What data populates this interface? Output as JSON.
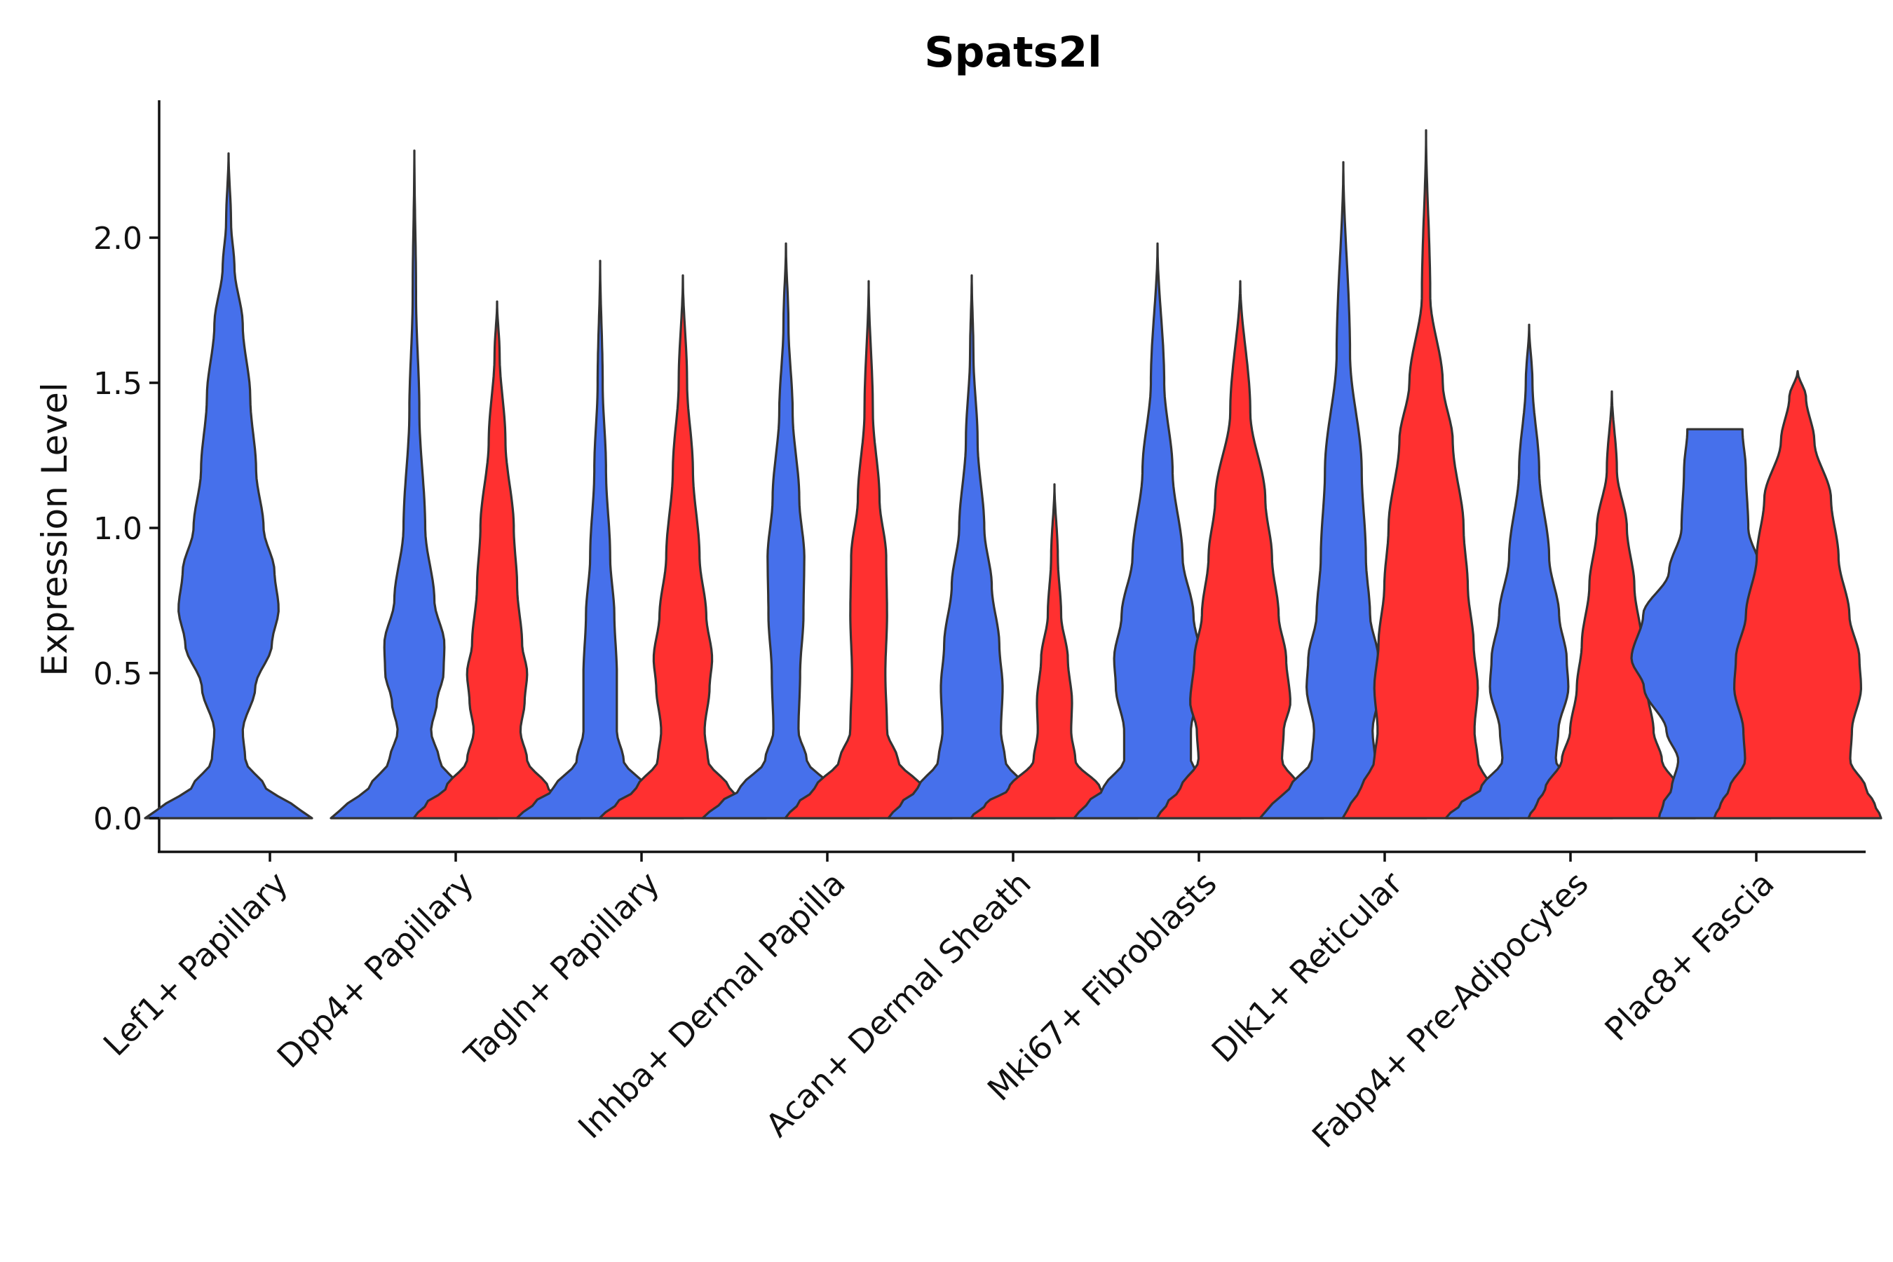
{
  "chart_data": {
    "type": "violin",
    "title": "Spats2l",
    "xlabel": "",
    "ylabel": "Expression Level",
    "ylim": [
      -0.12,
      2.47
    ],
    "yticks": [
      0.0,
      0.5,
      1.0,
      1.5,
      2.0
    ],
    "ytick_labels": [
      "0.0",
      "0.5",
      "1.0",
      "1.5",
      "2.0"
    ],
    "categories": [
      "Lef1+ Papillary",
      "Dpp4+ Papillary",
      "Tagln+ Papillary",
      "Inhba+ Dermal Papilla",
      "Acan+ Dermal Sheath",
      "Mki67+ Fibroblasts",
      "Dlk1+ Reticular",
      "Fabp4+ Pre-Adipocytes",
      "Plac8+ Fascia"
    ],
    "colors": {
      "blue_group": "#4670EB",
      "red_group": "#FF3030",
      "outline": "#333333"
    },
    "violins": [
      {
        "category": 0,
        "group": "blue",
        "max": 2.29,
        "profile": [
          [
            0,
            1.0
          ],
          [
            0.05,
            0.75
          ],
          [
            0.1,
            0.45
          ],
          [
            0.2,
            0.2
          ],
          [
            0.3,
            0.17
          ],
          [
            0.45,
            0.32
          ],
          [
            0.6,
            0.52
          ],
          [
            0.72,
            0.6
          ],
          [
            0.85,
            0.55
          ],
          [
            1.0,
            0.42
          ],
          [
            1.2,
            0.33
          ],
          [
            1.45,
            0.26
          ],
          [
            1.7,
            0.17
          ],
          [
            1.9,
            0.07
          ],
          [
            2.05,
            0.03
          ],
          [
            2.29,
            0.0
          ]
        ]
      },
      {
        "category": 1,
        "group": "blue",
        "max": 2.3,
        "profile": [
          [
            0,
            1.0
          ],
          [
            0.05,
            0.8
          ],
          [
            0.1,
            0.55
          ],
          [
            0.2,
            0.3
          ],
          [
            0.3,
            0.2
          ],
          [
            0.4,
            0.27
          ],
          [
            0.5,
            0.35
          ],
          [
            0.6,
            0.36
          ],
          [
            0.75,
            0.24
          ],
          [
            1.0,
            0.13
          ],
          [
            1.4,
            0.06
          ],
          [
            1.8,
            0.02
          ],
          [
            2.3,
            0.0
          ]
        ]
      },
      {
        "category": 1,
        "group": "red",
        "max": 1.78,
        "profile": [
          [
            0,
            1.0
          ],
          [
            0.05,
            0.85
          ],
          [
            0.1,
            0.62
          ],
          [
            0.2,
            0.36
          ],
          [
            0.3,
            0.28
          ],
          [
            0.4,
            0.33
          ],
          [
            0.5,
            0.36
          ],
          [
            0.6,
            0.3
          ],
          [
            0.8,
            0.24
          ],
          [
            1.0,
            0.2
          ],
          [
            1.3,
            0.1
          ],
          [
            1.6,
            0.03
          ],
          [
            1.78,
            0.0
          ]
        ]
      },
      {
        "category": 2,
        "group": "blue",
        "max": 1.92,
        "profile": [
          [
            0,
            1.0
          ],
          [
            0.05,
            0.8
          ],
          [
            0.1,
            0.56
          ],
          [
            0.2,
            0.28
          ],
          [
            0.3,
            0.2
          ],
          [
            0.5,
            0.2
          ],
          [
            0.7,
            0.17
          ],
          [
            0.9,
            0.12
          ],
          [
            1.2,
            0.07
          ],
          [
            1.5,
            0.03
          ],
          [
            1.92,
            0.0
          ]
        ]
      },
      {
        "category": 2,
        "group": "red",
        "max": 1.87,
        "profile": [
          [
            0,
            1.0
          ],
          [
            0.05,
            0.8
          ],
          [
            0.1,
            0.56
          ],
          [
            0.2,
            0.3
          ],
          [
            0.3,
            0.26
          ],
          [
            0.45,
            0.32
          ],
          [
            0.55,
            0.35
          ],
          [
            0.7,
            0.28
          ],
          [
            0.9,
            0.2
          ],
          [
            1.2,
            0.12
          ],
          [
            1.5,
            0.05
          ],
          [
            1.87,
            0.0
          ]
        ]
      },
      {
        "category": 3,
        "group": "blue",
        "max": 1.98,
        "profile": [
          [
            0,
            1.0
          ],
          [
            0.05,
            0.8
          ],
          [
            0.1,
            0.55
          ],
          [
            0.2,
            0.25
          ],
          [
            0.3,
            0.15
          ],
          [
            0.5,
            0.17
          ],
          [
            0.7,
            0.21
          ],
          [
            0.9,
            0.22
          ],
          [
            1.1,
            0.16
          ],
          [
            1.4,
            0.08
          ],
          [
            1.7,
            0.03
          ],
          [
            1.98,
            0.0
          ]
        ]
      },
      {
        "category": 3,
        "group": "red",
        "max": 1.85,
        "profile": [
          [
            0,
            1.0
          ],
          [
            0.05,
            0.85
          ],
          [
            0.1,
            0.65
          ],
          [
            0.2,
            0.35
          ],
          [
            0.3,
            0.22
          ],
          [
            0.5,
            0.2
          ],
          [
            0.7,
            0.22
          ],
          [
            0.9,
            0.21
          ],
          [
            1.1,
            0.13
          ],
          [
            1.4,
            0.05
          ],
          [
            1.85,
            0.0
          ]
        ]
      },
      {
        "category": 4,
        "group": "blue",
        "max": 1.87,
        "profile": [
          [
            0,
            1.0
          ],
          [
            0.05,
            0.85
          ],
          [
            0.1,
            0.65
          ],
          [
            0.2,
            0.4
          ],
          [
            0.3,
            0.35
          ],
          [
            0.45,
            0.37
          ],
          [
            0.6,
            0.33
          ],
          [
            0.8,
            0.24
          ],
          [
            1.0,
            0.15
          ],
          [
            1.3,
            0.07
          ],
          [
            1.6,
            0.02
          ],
          [
            1.87,
            0.0
          ]
        ]
      },
      {
        "category": 4,
        "group": "red",
        "max": 1.15,
        "profile": [
          [
            0,
            1.0
          ],
          [
            0.05,
            0.82
          ],
          [
            0.1,
            0.55
          ],
          [
            0.2,
            0.25
          ],
          [
            0.3,
            0.2
          ],
          [
            0.4,
            0.21
          ],
          [
            0.55,
            0.16
          ],
          [
            0.7,
            0.08
          ],
          [
            0.9,
            0.04
          ],
          [
            1.15,
            0.0
          ]
        ]
      },
      {
        "category": 5,
        "group": "blue",
        "max": 1.98,
        "profile": [
          [
            0,
            1.0
          ],
          [
            0.05,
            0.85
          ],
          [
            0.1,
            0.65
          ],
          [
            0.2,
            0.4
          ],
          [
            0.3,
            0.4
          ],
          [
            0.45,
            0.5
          ],
          [
            0.55,
            0.52
          ],
          [
            0.7,
            0.43
          ],
          [
            0.9,
            0.3
          ],
          [
            1.2,
            0.18
          ],
          [
            1.5,
            0.08
          ],
          [
            1.98,
            0.0
          ]
        ]
      },
      {
        "category": 5,
        "group": "red",
        "max": 1.85,
        "profile": [
          [
            0,
            1.0
          ],
          [
            0.05,
            0.88
          ],
          [
            0.1,
            0.72
          ],
          [
            0.2,
            0.5
          ],
          [
            0.3,
            0.52
          ],
          [
            0.4,
            0.6
          ],
          [
            0.55,
            0.55
          ],
          [
            0.7,
            0.46
          ],
          [
            0.9,
            0.38
          ],
          [
            1.1,
            0.3
          ],
          [
            1.4,
            0.12
          ],
          [
            1.85,
            0.0
          ]
        ]
      },
      {
        "category": 6,
        "group": "blue",
        "max": 2.26,
        "profile": [
          [
            0,
            1.0
          ],
          [
            0.05,
            0.85
          ],
          [
            0.1,
            0.65
          ],
          [
            0.2,
            0.38
          ],
          [
            0.3,
            0.35
          ],
          [
            0.45,
            0.44
          ],
          [
            0.55,
            0.42
          ],
          [
            0.7,
            0.32
          ],
          [
            0.9,
            0.27
          ],
          [
            1.2,
            0.22
          ],
          [
            1.6,
            0.08
          ],
          [
            2.26,
            0.0
          ]
        ]
      },
      {
        "category": 6,
        "group": "red",
        "max": 2.37,
        "profile": [
          [
            0,
            1.0
          ],
          [
            0.05,
            0.9
          ],
          [
            0.1,
            0.78
          ],
          [
            0.2,
            0.62
          ],
          [
            0.3,
            0.58
          ],
          [
            0.45,
            0.62
          ],
          [
            0.6,
            0.57
          ],
          [
            0.8,
            0.5
          ],
          [
            1.0,
            0.45
          ],
          [
            1.3,
            0.32
          ],
          [
            1.5,
            0.2
          ],
          [
            1.8,
            0.05
          ],
          [
            2.37,
            0.0
          ]
        ]
      },
      {
        "category": 7,
        "group": "blue",
        "max": 1.7,
        "profile": [
          [
            0,
            1.0
          ],
          [
            0.05,
            0.82
          ],
          [
            0.1,
            0.58
          ],
          [
            0.2,
            0.32
          ],
          [
            0.3,
            0.35
          ],
          [
            0.45,
            0.47
          ],
          [
            0.55,
            0.45
          ],
          [
            0.7,
            0.36
          ],
          [
            0.9,
            0.24
          ],
          [
            1.2,
            0.12
          ],
          [
            1.5,
            0.04
          ],
          [
            1.7,
            0.0
          ]
        ]
      },
      {
        "category": 7,
        "group": "red",
        "max": 1.47,
        "profile": [
          [
            0,
            1.0
          ],
          [
            0.05,
            0.9
          ],
          [
            0.1,
            0.8
          ],
          [
            0.2,
            0.6
          ],
          [
            0.3,
            0.5
          ],
          [
            0.45,
            0.42
          ],
          [
            0.6,
            0.36
          ],
          [
            0.8,
            0.27
          ],
          [
            1.0,
            0.18
          ],
          [
            1.2,
            0.06
          ],
          [
            1.47,
            0.0
          ]
        ]
      },
      {
        "category": 8,
        "group": "blue",
        "max": 1.34,
        "profile": [
          [
            0,
            0.67
          ],
          [
            0.05,
            0.62
          ],
          [
            0.1,
            0.52
          ],
          [
            0.2,
            0.44
          ],
          [
            0.3,
            0.58
          ],
          [
            0.45,
            0.85
          ],
          [
            0.55,
            1.0
          ],
          [
            0.7,
            0.86
          ],
          [
            0.85,
            0.55
          ],
          [
            1.0,
            0.4
          ],
          [
            1.2,
            0.37
          ],
          [
            1.34,
            0.33
          ]
        ]
      },
      {
        "category": 8,
        "group": "red",
        "max": 1.54,
        "profile": [
          [
            0,
            1.0
          ],
          [
            0.05,
            0.92
          ],
          [
            0.1,
            0.82
          ],
          [
            0.2,
            0.63
          ],
          [
            0.3,
            0.65
          ],
          [
            0.45,
            0.76
          ],
          [
            0.55,
            0.74
          ],
          [
            0.7,
            0.62
          ],
          [
            0.9,
            0.49
          ],
          [
            1.1,
            0.4
          ],
          [
            1.3,
            0.2
          ],
          [
            1.45,
            0.1
          ],
          [
            1.54,
            0.0
          ]
        ]
      }
    ]
  }
}
